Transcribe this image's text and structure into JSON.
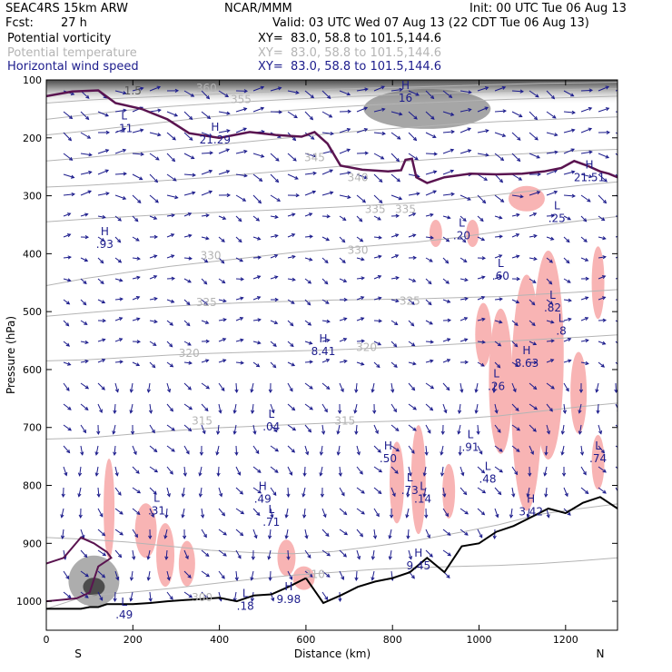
{
  "header": {
    "model": "SEAC4RS 15km ARW",
    "org": "NCAR/MMM",
    "init": "Init: 00 UTC Tue 06 Aug 13",
    "fcst_label": "Fcst:",
    "fcst_value": "27 h",
    "valid": "Valid: 03 UTC Wed 07 Aug 13 (22 CDT Tue 06 Aug 13)"
  },
  "fields": [
    {
      "name": "Potential vorticity",
      "xy": "XY=  83.0, 58.8 to 101.5,144.6",
      "color": "#000000"
    },
    {
      "name": "Potential temperature",
      "xy": "XY=  83.0, 58.8 to 101.5,144.6",
      "color": "#b4b4b4"
    },
    {
      "name": "Horizontal wind speed",
      "xy": "XY=  83.0, 58.8 to 101.5,144.6",
      "color": "#1c1c8c"
    }
  ],
  "chart_data": {
    "type": "cross-section",
    "xlabel": "Distance (km)",
    "ylabel": "Pressure (hPa)",
    "xlim": [
      0,
      1320
    ],
    "ylim": [
      1050,
      100
    ],
    "x_ticks": [
      0,
      200,
      400,
      600,
      800,
      1000,
      1200
    ],
    "y_ticks": [
      100,
      200,
      300,
      400,
      500,
      600,
      700,
      800,
      900,
      1000
    ],
    "x_end_labels": {
      "left": "S",
      "right": "N"
    },
    "colors": {
      "theta": "#b4b4b4",
      "pv": "#5a1450",
      "wind": "#1c1c8c",
      "shade": "#f8b4b4",
      "terrain": "#000000"
    },
    "theta_contours": [
      {
        "value": "300",
        "y": [
          1013,
          990,
          985,
          978,
          970,
          962,
          955,
          950,
          945,
          942,
          940,
          938,
          935,
          930,
          925
        ]
      },
      {
        "value": "310",
        "y": [
          890,
          893,
          898,
          905,
          912,
          916,
          918,
          914,
          905,
          895,
          882,
          868,
          850,
          840,
          832
        ]
      },
      {
        "value": "315",
        "y": [
          720,
          718,
          712,
          706,
          701,
          698,
          695,
          692,
          690,
          688,
          685,
          680,
          672,
          664,
          658
        ]
      },
      {
        "value": "320",
        "y": [
          585,
          583,
          579,
          575,
          572,
          570,
          568,
          566,
          563,
          560,
          556,
          552,
          548,
          544,
          540
        ]
      },
      {
        "value": "325",
        "y": [
          508,
          502,
          496,
          491,
          487,
          484,
          482,
          480,
          479,
          478,
          476,
          474,
          470,
          466,
          462
        ]
      },
      {
        "value": "330",
        "y": [
          455,
          442,
          432,
          422,
          414,
          406,
          398,
          392,
          386,
          380,
          372,
          362,
          352,
          343,
          336
        ]
      },
      {
        "value": "335",
        "y": [
          345,
          340,
          336,
          332,
          329,
          326,
          323,
          320,
          316,
          312,
          306,
          298,
          290,
          282,
          276
        ]
      },
      {
        "value": "340",
        "y": [
          285,
          282,
          278,
          273,
          268,
          262,
          256,
          250,
          244,
          239,
          234,
          230,
          226,
          222,
          220
        ]
      },
      {
        "value": "345",
        "y": [
          240,
          234,
          227,
          220,
          213,
          206,
          199,
          192,
          186,
          181,
          176,
          172,
          169,
          166,
          164
        ]
      },
      {
        "value": "350",
        "y": [
          195,
          188,
          180,
          172,
          164,
          158,
          152,
          147,
          143,
          140,
          137,
          134,
          132,
          130,
          128
        ]
      },
      {
        "value": "355",
        "y": [
          168,
          160,
          152,
          146,
          141,
          137,
          133,
          130,
          127,
          124,
          122,
          120,
          118,
          116,
          115
        ]
      },
      {
        "value": "360",
        "y": [
          140,
          135,
          131,
          128,
          125,
          122,
          119,
          116,
          114,
          112,
          110,
          108,
          106,
          105,
          104
        ]
      }
    ],
    "theta_x": [
      0,
      95,
      190,
      285,
      380,
      475,
      570,
      665,
      760,
      855,
      950,
      1045,
      1140,
      1235,
      1320
    ],
    "pv_tropopause": {
      "x": [
        0,
        60,
        120,
        160,
        220,
        280,
        330,
        400,
        470,
        530,
        590,
        620,
        650,
        680,
        730,
        790,
        820,
        830,
        845,
        855,
        880,
        920,
        980,
        1040,
        1100,
        1150,
        1190,
        1220,
        1250,
        1280,
        1300,
        1320
      ],
      "p": [
        128,
        120,
        118,
        140,
        150,
        168,
        192,
        200,
        190,
        195,
        198,
        190,
        210,
        248,
        255,
        258,
        256,
        238,
        236,
        268,
        278,
        268,
        262,
        263,
        262,
        258,
        252,
        240,
        248,
        258,
        262,
        268
      ]
    },
    "terrain": {
      "x": [
        0,
        20,
        40,
        60,
        80,
        100,
        120,
        140,
        160,
        180,
        200,
        240,
        280,
        320,
        360,
        400,
        440,
        480,
        520,
        560,
        600,
        640,
        680,
        720,
        760,
        800,
        840,
        880,
        920,
        960,
        1000,
        1040,
        1080,
        1120,
        1160,
        1200,
        1240,
        1280,
        1320
      ],
      "p": [
        1013,
        1013,
        1013,
        1013,
        1013,
        1010,
        1010,
        1005,
        1005,
        1005,
        1005,
        1003,
        1000,
        998,
        996,
        994,
        1000,
        990,
        988,
        975,
        960,
        1003,
        990,
        975,
        966,
        960,
        950,
        925,
        950,
        905,
        900,
        880,
        870,
        855,
        840,
        848,
        830,
        820,
        840
      ]
    },
    "shading": [
      {
        "x": 145,
        "p": 840,
        "w": 12,
        "h": 110
      },
      {
        "x": 230,
        "p": 878,
        "w": 24,
        "h": 60
      },
      {
        "x": 275,
        "p": 920,
        "w": 20,
        "h": 70
      },
      {
        "x": 325,
        "p": 935,
        "w": 18,
        "h": 50
      },
      {
        "x": 555,
        "p": 925,
        "w": 20,
        "h": 40
      },
      {
        "x": 595,
        "p": 960,
        "w": 24,
        "h": 26
      },
      {
        "x": 810,
        "p": 795,
        "w": 16,
        "h": 90
      },
      {
        "x": 860,
        "p": 790,
        "w": 16,
        "h": 120
      },
      {
        "x": 930,
        "p": 810,
        "w": 14,
        "h": 60
      },
      {
        "x": 1010,
        "p": 540,
        "w": 18,
        "h": 70
      },
      {
        "x": 1050,
        "p": 620,
        "w": 26,
        "h": 160
      },
      {
        "x": 1110,
        "p": 640,
        "w": 34,
        "h": 260
      },
      {
        "x": 1160,
        "p": 575,
        "w": 34,
        "h": 230
      },
      {
        "x": 1230,
        "p": 640,
        "w": 18,
        "h": 90
      },
      {
        "x": 1275,
        "p": 450,
        "w": 14,
        "h": 80
      },
      {
        "x": 1275,
        "p": 760,
        "w": 14,
        "h": 60
      },
      {
        "x": 900,
        "p": 365,
        "w": 14,
        "h": 30
      },
      {
        "x": 985,
        "p": 365,
        "w": 14,
        "h": 30
      },
      {
        "x": 1110,
        "p": 305,
        "w": 40,
        "h": 28
      }
    ],
    "theta_labels": [
      {
        "text": "360",
        "x": 370,
        "p": 120
      },
      {
        "text": "355",
        "x": 450,
        "p": 140
      },
      {
        "text": "345",
        "x": 620,
        "p": 240
      },
      {
        "text": "340",
        "x": 720,
        "p": 275
      },
      {
        "text": "335",
        "x": 760,
        "p": 330
      },
      {
        "text": "335",
        "x": 830,
        "p": 330
      },
      {
        "text": "330",
        "x": 720,
        "p": 400
      },
      {
        "text": "330",
        "x": 380,
        "p": 410
      },
      {
        "text": "325",
        "x": 370,
        "p": 490
      },
      {
        "text": "325",
        "x": 840,
        "p": 488
      },
      {
        "text": "320",
        "x": 330,
        "p": 578
      },
      {
        "text": "320",
        "x": 740,
        "p": 568
      },
      {
        "text": "315",
        "x": 360,
        "p": 695
      },
      {
        "text": "315",
        "x": 690,
        "p": 695
      },
      {
        "text": "310",
        "x": 620,
        "p": 960
      },
      {
        "text": "300",
        "x": 360,
        "p": 1000
      }
    ],
    "extrema": [
      {
        "mark": "H",
        "value": "16",
        "x": 830,
        "p": 138
      },
      {
        "mark": "L",
        "value": ".11",
        "x": 180,
        "p": 190
      },
      {
        "mark": "H",
        "value": "21.29",
        "x": 390,
        "p": 210
      },
      {
        "mark": "H",
        "value": "21.51",
        "x": 1255,
        "p": 275
      },
      {
        "mark": "L",
        "value": ".25",
        "x": 1180,
        "p": 345
      },
      {
        "mark": "H",
        "value": ".93",
        "x": 135,
        "p": 390
      },
      {
        "mark": "L",
        "value": ".20",
        "x": 960,
        "p": 375
      },
      {
        "mark": "L",
        "value": ".60",
        "x": 1050,
        "p": 445
      },
      {
        "mark": "L",
        "value": ".82",
        "x": 1170,
        "p": 500
      },
      {
        "mark": "L",
        "value": ".8",
        "x": 1190,
        "p": 540
      },
      {
        "mark": "H",
        "value": "8.41",
        "x": 640,
        "p": 575
      },
      {
        "mark": "H",
        "value": "8.63",
        "x": 1110,
        "p": 595
      },
      {
        "mark": "L",
        "value": ".26",
        "x": 1040,
        "p": 635
      },
      {
        "mark": "L",
        "value": ".04",
        "x": 520,
        "p": 705
      },
      {
        "mark": "L",
        "value": ".91",
        "x": 980,
        "p": 740
      },
      {
        "mark": "H",
        "value": ".50",
        "x": 790,
        "p": 760
      },
      {
        "mark": "L",
        "value": ".74",
        "x": 1275,
        "p": 760
      },
      {
        "mark": "L",
        "value": ".48",
        "x": 1020,
        "p": 795
      },
      {
        "mark": "L",
        "value": ".73",
        "x": 840,
        "p": 815
      },
      {
        "mark": "L",
        "value": ".14",
        "x": 870,
        "p": 830
      },
      {
        "mark": "H",
        "value": ".49",
        "x": 500,
        "p": 830
      },
      {
        "mark": "L",
        "value": ".31",
        "x": 255,
        "p": 850
      },
      {
        "mark": "H",
        "value": "3.42",
        "x": 1120,
        "p": 852
      },
      {
        "mark": "L",
        "value": ".71",
        "x": 520,
        "p": 870
      },
      {
        "mark": "H",
        "value": "9.45",
        "x": 860,
        "p": 945
      },
      {
        "mark": "H",
        "value": "9.98",
        "x": 560,
        "p": 1003
      },
      {
        "mark": "L",
        "value": ".18",
        "x": 460,
        "p": 1015
      },
      {
        "mark": "L",
        "value": ".49",
        "x": 180,
        "p": 1030
      }
    ],
    "pv_contour_labels": [
      {
        "text": "1.5",
        "x": 200,
        "p": 125
      }
    ]
  }
}
